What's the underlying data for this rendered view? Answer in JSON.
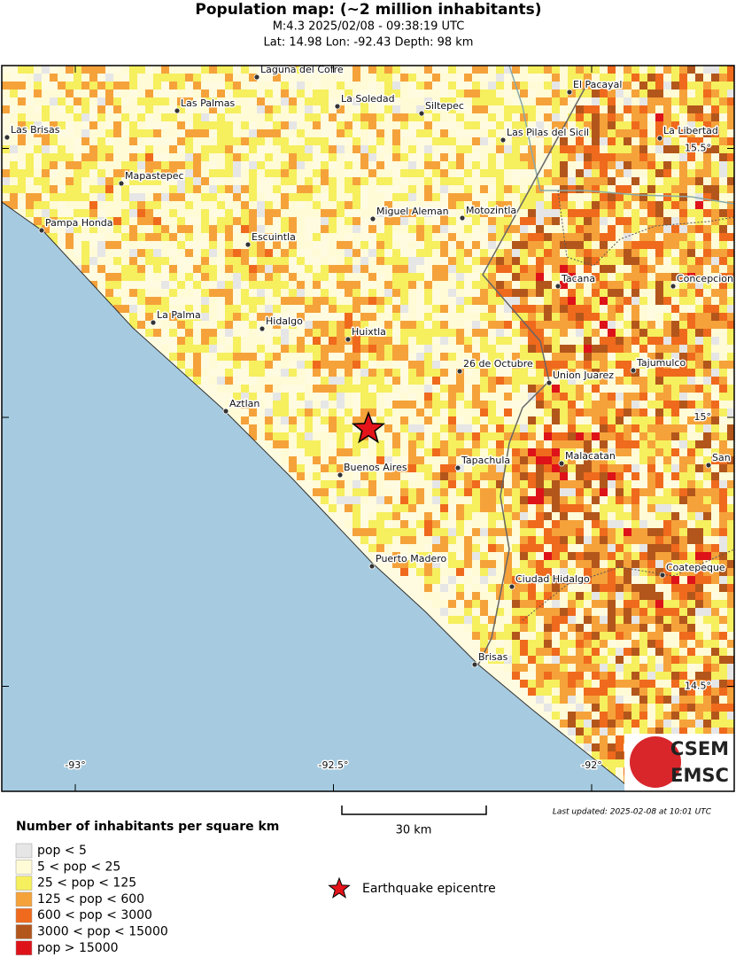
{
  "header": {
    "title": "Population map: (~2 million inhabitants)",
    "subtitle": "M:4.3 2025/02/08 - 09:38:19 UTC",
    "location": "Lat: 14.98 Lon: -92.43 Depth: 98 km"
  },
  "map": {
    "places": [
      "Laguna del Cofre",
      "Las Palmas",
      "La Soledad",
      "Siltepec",
      "El Pacayal",
      "Las Brisas",
      "Las Pilas del Sicil",
      "La Libertad",
      "Mapastepec",
      "Miguel Aleman",
      "Motozintla",
      "Pampa Honda",
      "Escuintla",
      "Tacana",
      "Concepcion",
      "La Palma",
      "Hidalgo",
      "Huixtla",
      "26 de Octubre",
      "Tajumulco",
      "Union Juarez",
      "Aztlan",
      "Tapachula",
      "Malacatan",
      "San",
      "Buenos Aires",
      "Puerto Madero",
      "Ciudad Hidalgo",
      "Coatepeque",
      "Brisas"
    ],
    "xticks": [
      {
        "value": -93,
        "label": "-93°"
      },
      {
        "value": -92.5,
        "label": "-92.5°"
      },
      {
        "value": -92,
        "label": "-92°"
      }
    ],
    "yticks": [
      {
        "value": 15.5,
        "label": "15.5°"
      },
      {
        "value": 15,
        "label": "15°"
      },
      {
        "value": 14.5,
        "label": "14.5°"
      }
    ],
    "logo": [
      "CSEM",
      "EMSC"
    ]
  },
  "scale_bar": "30 km",
  "last_updated": "Last updated: 2025-02-08 at 10:01 UTC",
  "legend": {
    "title": "Number of inhabitants per square km",
    "items": [
      {
        "label": "pop < 5",
        "color": "#e6e6e6"
      },
      {
        "label": "5 < pop < 25",
        "color": "#fffbd6"
      },
      {
        "label": "25 < pop < 125",
        "color": "#f6ef5e"
      },
      {
        "label": "125 < pop < 600",
        "color": "#f5a23a"
      },
      {
        "label": "600 < pop < 3000",
        "color": "#ef6a1c"
      },
      {
        "label": "3000 < pop < 15000",
        "color": "#b3561b"
      },
      {
        "label": "pop > 15000",
        "color": "#de1219"
      }
    ],
    "epicentre": "Earthquake epicentre"
  }
}
